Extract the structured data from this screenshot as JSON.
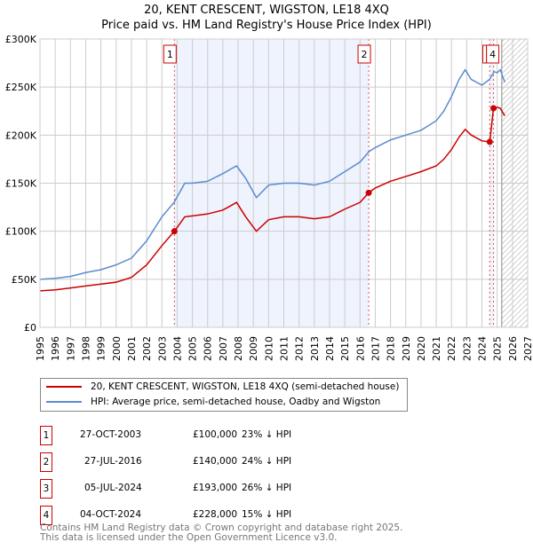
{
  "chart_data": {
    "type": "line",
    "title": "20, KENT CRESCENT, WIGSTON, LE18 4XQ",
    "subtitle": "Price paid vs. HM Land Registry's House Price Index (HPI)",
    "xlim": [
      1995,
      2027
    ],
    "ylim": [
      0,
      300000
    ],
    "x_ticks": [
      "1995",
      "1996",
      "1997",
      "1998",
      "1999",
      "2000",
      "2001",
      "2002",
      "2003",
      "2004",
      "2005",
      "2006",
      "2007",
      "2008",
      "2009",
      "2010",
      "2011",
      "2012",
      "2013",
      "2014",
      "2015",
      "2016",
      "2017",
      "2018",
      "2019",
      "2020",
      "2021",
      "2022",
      "2023",
      "2024",
      "2025",
      "2026",
      "2027"
    ],
    "y_ticks": [
      {
        "v": 0,
        "label": "£0"
      },
      {
        "v": 50000,
        "label": "£50K"
      },
      {
        "v": 100000,
        "label": "£100K"
      },
      {
        "v": 150000,
        "label": "£150K"
      },
      {
        "v": 200000,
        "label": "£200K"
      },
      {
        "v": 250000,
        "label": "£250K"
      },
      {
        "v": 300000,
        "label": "£300K"
      }
    ],
    "grid": true,
    "series": [
      {
        "name": "20, KENT CRESCENT, WIGSTON, LE18 4XQ (semi-detached house)",
        "color": "#cc0000",
        "x": [
          1995,
          1996,
          1997,
          1998,
          1999,
          2000,
          2001,
          2002,
          2003,
          2003.82,
          2004.5,
          2005,
          2006,
          2007,
          2007.9,
          2008.5,
          2009.2,
          2010,
          2011,
          2012,
          2013,
          2014,
          2015,
          2016,
          2016.57,
          2017,
          2018,
          2019,
          2020,
          2021,
          2021.5,
          2022,
          2022.5,
          2022.9,
          2023.3,
          2024,
          2024.51,
          2024.76,
          2025,
          2025.2,
          2025.5
        ],
        "y": [
          38000,
          39000,
          41000,
          43000,
          45000,
          47000,
          52000,
          65000,
          85000,
          100000,
          115000,
          116000,
          118000,
          122000,
          130000,
          115000,
          100000,
          112000,
          115000,
          115000,
          113000,
          115000,
          123000,
          130000,
          140000,
          145000,
          152000,
          157000,
          162000,
          168000,
          175000,
          185000,
          198000,
          206000,
          200000,
          194000,
          193000,
          228000,
          229000,
          228000,
          220000
        ]
      },
      {
        "name": "HPI: Average price, semi-detached house, Oadby and Wigston",
        "color": "#5b8bd0",
        "x": [
          1995,
          1996,
          1997,
          1998,
          1999,
          2000,
          2001,
          2002,
          2003,
          2003.8,
          2004.5,
          2005,
          2006,
          2007,
          2007.9,
          2008.5,
          2009.2,
          2010,
          2011,
          2012,
          2013,
          2014,
          2015,
          2016,
          2016.6,
          2017,
          2018,
          2019,
          2020,
          2021,
          2021.5,
          2022,
          2022.5,
          2022.9,
          2023.3,
          2024,
          2024.5,
          2024.8,
          2025,
          2025.2,
          2025.5
        ],
        "y": [
          50000,
          51000,
          53000,
          57000,
          60000,
          65000,
          72000,
          90000,
          115000,
          130000,
          150000,
          150000,
          152000,
          160000,
          168000,
          155000,
          135000,
          148000,
          150000,
          150000,
          148000,
          152000,
          162000,
          172000,
          183000,
          187000,
          195000,
          200000,
          205000,
          215000,
          225000,
          240000,
          258000,
          268000,
          258000,
          252000,
          258000,
          266000,
          265000,
          268000,
          255000
        ]
      }
    ],
    "sales": [
      {
        "n": "1",
        "date": "27-OCT-2003",
        "x": 2003.82,
        "price": 100000,
        "price_label": "£100,000",
        "hpi": "23% ↓ HPI"
      },
      {
        "n": "2",
        "date": "27-JUL-2016",
        "x": 2016.57,
        "price": 140000,
        "price_label": "£140,000",
        "hpi": "24% ↓ HPI"
      },
      {
        "n": "3",
        "date": "05-JUL-2024",
        "x": 2024.51,
        "price": 193000,
        "price_label": "£193,000",
        "hpi": "26% ↓ HPI"
      },
      {
        "n": "4",
        "date": "04-OCT-2024",
        "x": 2024.76,
        "price": 228000,
        "price_label": "£228,000",
        "hpi": "15% ↓ HPI"
      }
    ],
    "forecast_start": 2025.3
  },
  "legend": {
    "red": "20, KENT CRESCENT, WIGSTON, LE18 4XQ (semi-detached house)",
    "blue": "HPI: Average price, semi-detached house, Oadby and Wigston"
  },
  "footer": {
    "line1": "Contains HM Land Registry data © Crown copyright and database right 2025.",
    "line2": "This data is licensed under the Open Government Licence v3.0."
  }
}
